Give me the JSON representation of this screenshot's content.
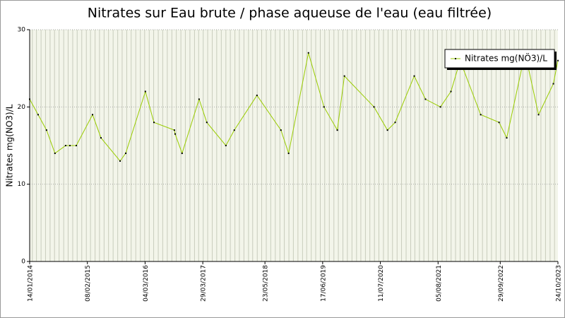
{
  "chart_data": {
    "type": "line",
    "title": "Nitrates sur Eau brute / phase aqueuse de l'eau (eau filtrée)",
    "y_label": "Nitrates mg(NO3)/L",
    "x": [
      "2014-01-14",
      "2014-03-12",
      "2014-05-08",
      "2014-07-04",
      "2014-09-14",
      "2014-10-13",
      "2014-11-25",
      "2015-03-15",
      "2015-05-11",
      "2015-09-17",
      "2015-10-25",
      "2016-03-06",
      "2016-05-03",
      "2016-09-18",
      "2016-09-23",
      "2016-11-09",
      "2017-03-04",
      "2017-04-25",
      "2017-09-01",
      "2017-10-28",
      "2018-03-30",
      "2018-09-08",
      "2018-10-30",
      "2019-03-13",
      "2019-06-26",
      "2019-09-24",
      "2019-11-11",
      "2020-05-29",
      "2020-08-28",
      "2020-10-19",
      "2021-02-25",
      "2021-05-12",
      "2021-08-21",
      "2021-10-31",
      "2022-01-01",
      "2022-05-20",
      "2022-09-21",
      "2022-11-12",
      "2023-03-16",
      "2023-06-15",
      "2023-09-23",
      "2023-10-24"
    ],
    "series": [
      {
        "name": "Nitrates mg(NÖ3)/L",
        "color": "#99cc00",
        "values": [
          21,
          19,
          17,
          14,
          15,
          15,
          15,
          19,
          16,
          13,
          14,
          22,
          18,
          17,
          16.5,
          14,
          21,
          18,
          15,
          17,
          21.5,
          17,
          14,
          27,
          20,
          17,
          24,
          20,
          17,
          18,
          24,
          21,
          20,
          22,
          26,
          19,
          18,
          16,
          27,
          19,
          23,
          26
        ]
      }
    ],
    "xlim": [
      "2014-01-14",
      "2023-10-24"
    ],
    "xticks": [
      {
        "value": "2014-01-14",
        "label": "14/01/2014"
      },
      {
        "value": "2015-02-08",
        "label": "08/02/2015"
      },
      {
        "value": "2016-03-04",
        "label": "04/03/2016"
      },
      {
        "value": "2017-03-29",
        "label": "29/03/2017"
      },
      {
        "value": "2018-05-23",
        "label": "23/05/2018"
      },
      {
        "value": "2019-06-17",
        "label": "17/06/2019"
      },
      {
        "value": "2020-07-11",
        "label": "11/07/2020"
      },
      {
        "value": "2021-08-05",
        "label": "05/08/2021"
      },
      {
        "value": "2022-09-29",
        "label": "29/09/2022"
      },
      {
        "value": "2023-10-24",
        "label": "24/10/2023"
      }
    ],
    "ylim": [
      0,
      30
    ],
    "yticks": [
      0,
      10,
      20,
      30
    ],
    "grid": true,
    "legend": "top-right"
  }
}
